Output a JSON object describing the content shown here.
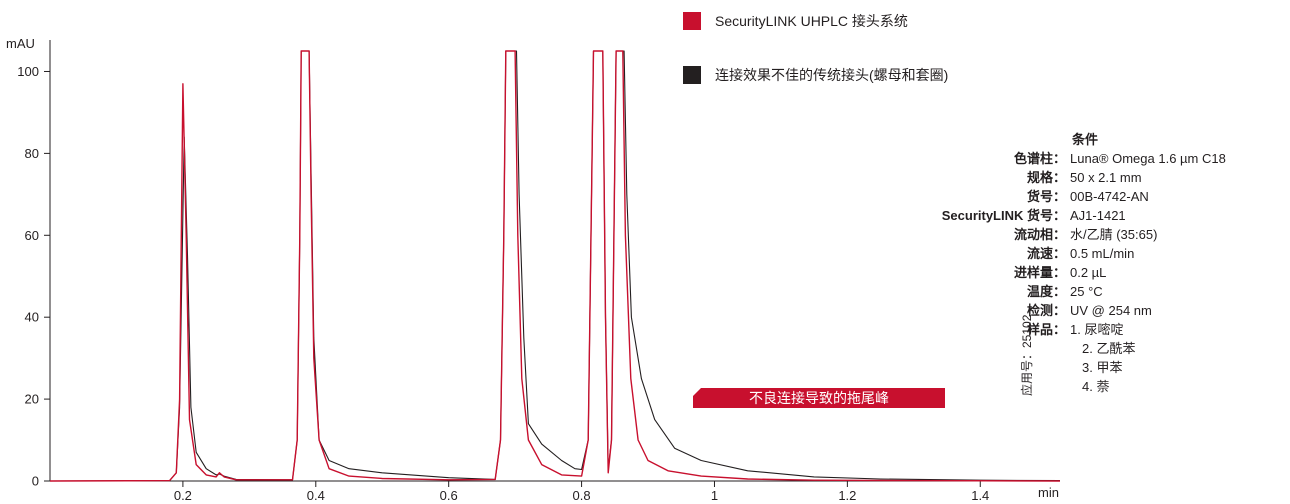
{
  "chart_data": {
    "type": "line",
    "y_unit": "mAU",
    "x_unit": "min",
    "xlim": [
      0,
      1.52
    ],
    "ylim": [
      0,
      105
    ],
    "x_ticks": [
      {
        "value": 0.2,
        "label": "0.2"
      },
      {
        "value": 0.4,
        "label": "0.4"
      },
      {
        "value": 0.6,
        "label": "0.6"
      },
      {
        "value": 0.8,
        "label": "0.8"
      },
      {
        "value": 1.0,
        "label": "1"
      },
      {
        "value": 1.2,
        "label": "1.2"
      },
      {
        "value": 1.4,
        "label": "1.4"
      }
    ],
    "y_ticks": [
      {
        "value": 0,
        "label": "0"
      },
      {
        "value": 20,
        "label": "20"
      },
      {
        "value": 40,
        "label": "40"
      },
      {
        "value": 60,
        "label": "60"
      },
      {
        "value": 80,
        "label": "80"
      },
      {
        "value": 100,
        "label": "100"
      }
    ],
    "grid": false,
    "series": [
      {
        "name": "SecurityLINK UHPLC 接头系统",
        "color": "#c8102e",
        "points": [
          [
            0.0,
            0.0
          ],
          [
            0.18,
            0.1
          ],
          [
            0.19,
            2
          ],
          [
            0.195,
            20
          ],
          [
            0.2,
            97
          ],
          [
            0.205,
            60
          ],
          [
            0.21,
            15
          ],
          [
            0.22,
            4
          ],
          [
            0.235,
            1.5
          ],
          [
            0.25,
            1.0
          ],
          [
            0.255,
            2.0
          ],
          [
            0.262,
            1.0
          ],
          [
            0.28,
            0.3
          ],
          [
            0.365,
            0.3
          ],
          [
            0.372,
            10
          ],
          [
            0.376,
            60
          ],
          [
            0.378,
            105
          ],
          [
            0.39,
            105
          ],
          [
            0.393,
            70
          ],
          [
            0.397,
            30
          ],
          [
            0.405,
            10
          ],
          [
            0.42,
            3
          ],
          [
            0.45,
            1.2
          ],
          [
            0.5,
            0.6
          ],
          [
            0.6,
            0.3
          ],
          [
            0.67,
            0.4
          ],
          [
            0.678,
            10
          ],
          [
            0.683,
            60
          ],
          [
            0.686,
            105
          ],
          [
            0.7,
            105
          ],
          [
            0.704,
            60
          ],
          [
            0.71,
            25
          ],
          [
            0.72,
            10
          ],
          [
            0.74,
            4
          ],
          [
            0.77,
            1.5
          ],
          [
            0.8,
            1.2
          ],
          [
            0.81,
            10
          ],
          [
            0.818,
            105
          ],
          [
            0.832,
            105
          ],
          [
            0.836,
            40
          ],
          [
            0.84,
            2
          ],
          [
            0.845,
            10
          ],
          [
            0.852,
            105
          ],
          [
            0.862,
            105
          ],
          [
            0.866,
            60
          ],
          [
            0.874,
            25
          ],
          [
            0.885,
            10
          ],
          [
            0.9,
            5
          ],
          [
            0.93,
            2.5
          ],
          [
            0.98,
            1.2
          ],
          [
            1.05,
            0.5
          ],
          [
            1.15,
            0.2
          ],
          [
            1.3,
            0.1
          ],
          [
            1.52,
            0.0
          ]
        ]
      },
      {
        "name": "连接效果不佳的传统接头(螺母和套圈)",
        "color": "#231f20",
        "points": [
          [
            0.0,
            0.0
          ],
          [
            0.18,
            0.1
          ],
          [
            0.19,
            2
          ],
          [
            0.195,
            18
          ],
          [
            0.202,
            84
          ],
          [
            0.207,
            55
          ],
          [
            0.212,
            18
          ],
          [
            0.22,
            7
          ],
          [
            0.235,
            3
          ],
          [
            0.25,
            1.5
          ],
          [
            0.255,
            1.7
          ],
          [
            0.262,
            1.2
          ],
          [
            0.28,
            0.4
          ],
          [
            0.365,
            0.3
          ],
          [
            0.372,
            10
          ],
          [
            0.376,
            60
          ],
          [
            0.378,
            105
          ],
          [
            0.39,
            105
          ],
          [
            0.393,
            75
          ],
          [
            0.397,
            35
          ],
          [
            0.405,
            10
          ],
          [
            0.42,
            5
          ],
          [
            0.45,
            3
          ],
          [
            0.5,
            2
          ],
          [
            0.6,
            0.8
          ],
          [
            0.67,
            0.4
          ],
          [
            0.678,
            10
          ],
          [
            0.683,
            60
          ],
          [
            0.686,
            105
          ],
          [
            0.702,
            105
          ],
          [
            0.706,
            70
          ],
          [
            0.713,
            35
          ],
          [
            0.72,
            14
          ],
          [
            0.74,
            9
          ],
          [
            0.77,
            5
          ],
          [
            0.79,
            3
          ],
          [
            0.8,
            2.8
          ],
          [
            0.81,
            10
          ],
          [
            0.818,
            105
          ],
          [
            0.832,
            105
          ],
          [
            0.836,
            40
          ],
          [
            0.84,
            3
          ],
          [
            0.845,
            10
          ],
          [
            0.852,
            105
          ],
          [
            0.864,
            105
          ],
          [
            0.868,
            70
          ],
          [
            0.875,
            40
          ],
          [
            0.89,
            25
          ],
          [
            0.91,
            15
          ],
          [
            0.94,
            8
          ],
          [
            0.98,
            5
          ],
          [
            1.05,
            2.5
          ],
          [
            1.15,
            1.0
          ],
          [
            1.25,
            0.5
          ],
          [
            1.4,
            0.2
          ],
          [
            1.52,
            0.1
          ]
        ]
      }
    ],
    "annotation": "不良连接导致的拖尾峰"
  },
  "conditions": {
    "title": "条件",
    "items": [
      {
        "key": "色谱柱：",
        "value": "Luna® Omega 1.6 µm C18"
      },
      {
        "key": "规格：",
        "value": "50 x 2.1 mm"
      },
      {
        "key": "货号：",
        "value": "00B-4742-AN"
      },
      {
        "key": "SecurityLINK 货号：",
        "value": "AJ1-1421"
      },
      {
        "key": "流动相：",
        "value": "水/乙腈 (35:65)"
      },
      {
        "key": "流速：",
        "value": "0.5 mL/min"
      },
      {
        "key": "进样量：",
        "value": "0.2 µL"
      },
      {
        "key": "温度：",
        "value": "25 °C"
      },
      {
        "key": "检测：",
        "value": "UV @ 254 nm"
      },
      {
        "key": "样品：",
        "value": "1. 尿嘧啶"
      },
      {
        "key": "",
        "value": "2. 乙酰苯"
      },
      {
        "key": "",
        "value": "3. 甲苯"
      },
      {
        "key": "",
        "value": "4. 萘"
      }
    ]
  },
  "app_note": "应用号：25102"
}
